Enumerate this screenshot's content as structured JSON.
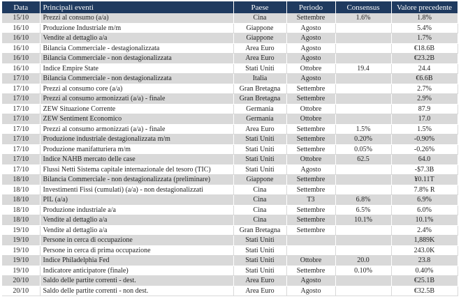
{
  "table": {
    "header": [
      "Data",
      "Principali eventi",
      "Paese",
      "Periodo",
      "Consensus",
      "Valore precedente"
    ],
    "rows": [
      [
        "15/10",
        "Prezzi al consumo   (a/a)",
        "Cina",
        "Settembre",
        "1.6%",
        "1.8%"
      ],
      [
        "16/10",
        "Produzione Industriale m/m",
        "Giappone",
        "Agosto",
        null,
        "5.4%"
      ],
      [
        "16/10",
        "Vendite al dettaglio a/a",
        "Giappone",
        "Agosto",
        null,
        "1.7%"
      ],
      [
        "16/10",
        "Bilancia Commerciale - destagionalizzata",
        "Area Euro",
        "Agosto",
        null,
        "€18.6B"
      ],
      [
        "16/10",
        "Bilancia Commerciale - non destagionalizzata",
        "Area Euro",
        "Agosto",
        null,
        "€23.2B"
      ],
      [
        "16/10",
        "Indice Empire State",
        "Stati Uniti",
        "Ottobre",
        "19.4",
        "24.4"
      ],
      [
        "17/10",
        "Bilancia Commerciale - non destagionalizzata",
        "Italia",
        "Agosto",
        null,
        "€6.6B"
      ],
      [
        "17/10",
        "Prezzi al consumo core (a/a)",
        "Gran Bretagna",
        "Settembre",
        null,
        "2.7%"
      ],
      [
        "17/10",
        "Prezzi al consumo armonizzati (a/a) - finale",
        "Gran Bretagna",
        "Settembre",
        null,
        "2.9%"
      ],
      [
        "17/10",
        "ZEW Situazione Corrente",
        "Germania",
        "Ottobre",
        null,
        "87.9"
      ],
      [
        "17/10",
        "ZEW Sentiment Economico",
        "Germania",
        "Ottobre",
        null,
        "17.0"
      ],
      [
        "17/10",
        "Prezzi al consumo armonizzati (a/a) - finale",
        "Area Euro",
        "Settembre",
        "1.5%",
        "1.5%"
      ],
      [
        "17/10",
        "Produzione industriale destagionalizzata m/m",
        "Stati Uniti",
        "Settembre",
        "0.20%",
        "-0.90%"
      ],
      [
        "17/10",
        "Produzione manifatturiera m/m",
        "Stati Uniti",
        "Settembre",
        "0.05%",
        "-0.26%"
      ],
      [
        "17/10",
        "Indice NAHB mercato delle case",
        "Stati Uniti",
        "Ottobre",
        "62.5",
        "64.0"
      ],
      [
        "17/10",
        "Flussi Netti Sistema capitale internazionale del tesoro (TIC)",
        "Stati Uniti",
        "Agosto",
        null,
        "-$7.3B"
      ],
      [
        "18/10",
        "Bilancia Commerciale -  non destagionalizzata (preliminare)",
        "Giappone",
        "Settembre",
        null,
        "¥0.11T"
      ],
      [
        "18/10",
        "Investimenti Fissi (cumulati) (a/a) - non destagionalizzati",
        "Cina",
        "Settembre",
        null,
        "7.8% R"
      ],
      [
        "18/10",
        "PIL (a/a)",
        "Cina",
        "T3",
        "6.8%",
        "6.9%"
      ],
      [
        "18/10",
        "Produzione industriale a/a",
        "Cina",
        "Settembre",
        "6.5%",
        "6.0%"
      ],
      [
        "18/10",
        "Vendite al dettaglio a/a",
        "Cina",
        "Settembre",
        "10.1%",
        "10.1%"
      ],
      [
        "19/10",
        "Vendite al dettaglio a/a",
        "Gran Bretagna",
        "Settembre",
        null,
        "2.4%"
      ],
      [
        "19/10",
        "Persone in cerca di occupazione",
        "Stati Uniti",
        null,
        null,
        "1,889K"
      ],
      [
        "19/10",
        "Persone in cerca di prima occupazione",
        "Stati Uniti",
        null,
        null,
        "243.0K"
      ],
      [
        "19/10",
        "Indice Philadelphia Fed",
        "Stati Uniti",
        "Ottobre",
        "20.0",
        "23.8"
      ],
      [
        "19/10",
        "Indicatore anticipatore (finale)",
        "Stati Uniti",
        "Settembre",
        "0.10%",
        "0.40%"
      ],
      [
        "20/10",
        "Saldo delle partite correnti - dest.",
        "Area Euro",
        "Agosto",
        null,
        "€25.1B"
      ],
      [
        "20/10",
        "Saldo delle partite correnti -  non dest.",
        "Area Euro",
        "Agosto",
        null,
        "€32.5B"
      ]
    ]
  }
}
